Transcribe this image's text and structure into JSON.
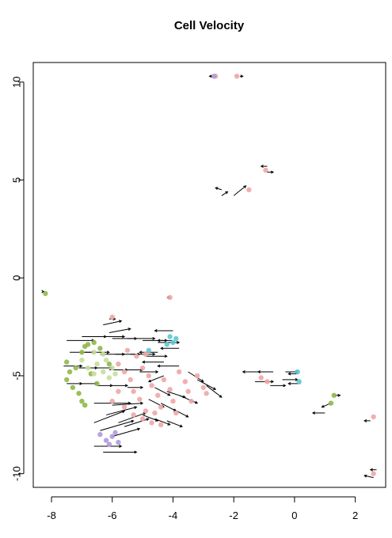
{
  "chart_data": {
    "type": "scatter",
    "title": "Cell Velocity",
    "xlabel": "",
    "ylabel": "",
    "xlim": [
      -8.6,
      3.0
    ],
    "ylim": [
      -10.7,
      11.0
    ],
    "x_ticks": [
      -8,
      -6,
      -4,
      -2,
      0,
      2
    ],
    "x_tick_labels": [
      "-8",
      "-6",
      "-4",
      "-2",
      "0",
      "2"
    ],
    "y_ticks": [
      -10,
      -5,
      0,
      5,
      10
    ],
    "y_tick_labels": [
      "-10",
      "-5",
      "0",
      "5",
      "10"
    ],
    "grid": false,
    "legend": "none",
    "series": [
      {
        "color": "#8fb84a",
        "points": [
          [
            -8.2,
            -0.8
          ],
          [
            -7.5,
            -4.3
          ],
          [
            -7.4,
            -4.8
          ],
          [
            -7.5,
            -5.2
          ],
          [
            -7.3,
            -5.6
          ],
          [
            -7.2,
            -4.6
          ],
          [
            -7.0,
            -3.8
          ],
          [
            -6.9,
            -3.5
          ],
          [
            -6.8,
            -3.4
          ],
          [
            -6.6,
            -3.3
          ],
          [
            -6.4,
            -3.6
          ],
          [
            -7.1,
            -5.9
          ],
          [
            -7.0,
            -6.3
          ],
          [
            -6.9,
            -6.5
          ],
          [
            -6.5,
            -5.4
          ],
          [
            -6.7,
            -4.9
          ],
          [
            -6.1,
            -4.4
          ],
          [
            1.2,
            -6.4
          ],
          [
            1.3,
            -6.0
          ]
        ]
      },
      {
        "color": "#c4df9a",
        "points": [
          [
            -7.0,
            -4.2
          ],
          [
            -6.8,
            -4.6
          ],
          [
            -6.6,
            -4.9
          ],
          [
            -6.5,
            -4.4
          ],
          [
            -6.3,
            -4.8
          ],
          [
            -6.1,
            -5.1
          ],
          [
            -6.0,
            -4.6
          ],
          [
            -6.3,
            -3.9
          ],
          [
            -6.6,
            -3.8
          ],
          [
            -6.2,
            -4.2
          ],
          [
            -5.9,
            -4.9
          ]
        ]
      },
      {
        "color": "#f0a6a6",
        "points": [
          [
            -2.6,
            10.3
          ],
          [
            -1.9,
            10.3
          ],
          [
            -0.95,
            5.5
          ],
          [
            -1.5,
            4.5
          ],
          [
            -4.1,
            -1.0
          ],
          [
            -6.0,
            -2.0
          ],
          [
            -5.8,
            -4.4
          ],
          [
            -5.6,
            -4.8
          ],
          [
            -5.4,
            -5.2
          ],
          [
            -5.3,
            -5.8
          ],
          [
            -5.1,
            -6.2
          ],
          [
            -5.0,
            -4.6
          ],
          [
            -4.8,
            -5.0
          ],
          [
            -4.7,
            -5.5
          ],
          [
            -4.5,
            -6.0
          ],
          [
            -4.4,
            -6.6
          ],
          [
            -4.3,
            -5.2
          ],
          [
            -4.1,
            -5.7
          ],
          [
            -4.0,
            -6.3
          ],
          [
            -3.9,
            -6.9
          ],
          [
            -3.8,
            -4.8
          ],
          [
            -3.6,
            -5.3
          ],
          [
            -3.5,
            -5.8
          ],
          [
            -3.4,
            -6.3
          ],
          [
            -3.2,
            -5.0
          ],
          [
            -3.0,
            -5.6
          ],
          [
            -2.9,
            -5.9
          ],
          [
            -5.6,
            -6.6
          ],
          [
            -5.3,
            -7.0
          ],
          [
            -5.0,
            -7.2
          ],
          [
            -4.7,
            -7.4
          ],
          [
            -4.4,
            -7.5
          ],
          [
            -4.9,
            -6.8
          ],
          [
            -4.6,
            -6.9
          ],
          [
            -5.8,
            -5.8
          ],
          [
            -6.0,
            -6.3
          ],
          [
            -5.5,
            -3.7
          ],
          [
            -5.2,
            -4.0
          ],
          [
            -4.9,
            -3.9
          ],
          [
            -1.1,
            -5.1
          ],
          [
            -0.9,
            -5.3
          ],
          [
            2.6,
            -7.1
          ],
          [
            2.6,
            -10.0
          ]
        ]
      },
      {
        "color": "#5ec8d6",
        "points": [
          [
            -4.1,
            -3.0
          ],
          [
            -4.0,
            -3.3
          ],
          [
            -3.9,
            -3.1
          ],
          [
            -4.2,
            -3.4
          ],
          [
            -4.8,
            -3.7
          ],
          [
            0.1,
            -4.8
          ],
          [
            0.15,
            -5.3
          ]
        ]
      },
      {
        "color": "#b09ad8",
        "points": [
          [
            -6.4,
            -8.0
          ],
          [
            -6.2,
            -8.3
          ],
          [
            -6.0,
            -8.1
          ],
          [
            -5.8,
            -8.4
          ],
          [
            -6.1,
            -8.5
          ],
          [
            -5.9,
            -7.9
          ],
          [
            -2.65,
            10.3
          ]
        ]
      }
    ],
    "arrows": [
      [
        -7.5,
        -3.2,
        0.9,
        0
      ],
      [
        -7.0,
        -3.0,
        0.8,
        0
      ],
      [
        -6.5,
        -3.0,
        0.9,
        0
      ],
      [
        -6.0,
        -3.1,
        0.8,
        0
      ],
      [
        -5.5,
        -3.1,
        0.9,
        0
      ],
      [
        -5.0,
        -3.2,
        0.8,
        0
      ],
      [
        -4.5,
        -3.3,
        0.7,
        0
      ],
      [
        -7.4,
        -3.8,
        0.8,
        0
      ],
      [
        -6.9,
        -3.8,
        0.8,
        0
      ],
      [
        -6.4,
        -3.9,
        0.8,
        0
      ],
      [
        -5.9,
        -3.9,
        0.8,
        0
      ],
      [
        -5.4,
        -3.9,
        0.8,
        0
      ],
      [
        -4.9,
        -4.0,
        0.7,
        0
      ],
      [
        -7.6,
        -4.5,
        0.6,
        0
      ],
      [
        -7.1,
        -4.6,
        0.6,
        0
      ],
      [
        -6.6,
        -4.6,
        0.6,
        0
      ],
      [
        -6.1,
        -4.7,
        0.6,
        0
      ],
      [
        -5.6,
        -4.7,
        0.6,
        0
      ],
      [
        -5.1,
        -4.8,
        0.6,
        0
      ],
      [
        -7.5,
        -5.4,
        0.5,
        0
      ],
      [
        -7.0,
        -5.4,
        0.5,
        0
      ],
      [
        -6.5,
        -5.5,
        0.5,
        0
      ],
      [
        -6.0,
        -5.5,
        0.5,
        0
      ],
      [
        -5.5,
        -5.6,
        0.5,
        0
      ],
      [
        -6.6,
        -6.4,
        1.2,
        0
      ],
      [
        -6.0,
        -6.5,
        1.0,
        0.1
      ],
      [
        -6.2,
        -7.0,
        1.0,
        0.4
      ],
      [
        -6.6,
        -7.4,
        1.0,
        0.6
      ],
      [
        -6.4,
        -7.8,
        1.1,
        0.5
      ],
      [
        -6.0,
        -8.1,
        0.9,
        0.4
      ],
      [
        -6.3,
        -8.9,
        1.1,
        0
      ],
      [
        -6.6,
        -8.6,
        0.9,
        0
      ],
      [
        -5.8,
        -7.4,
        0.9,
        0.5
      ],
      [
        -5.6,
        -7.6,
        0.8,
        0.4
      ],
      [
        -4.0,
        -2.7,
        -0.6,
        0
      ],
      [
        -4.0,
        -3.2,
        -0.5,
        0
      ],
      [
        -3.8,
        -3.6,
        -0.6,
        0
      ],
      [
        -4.5,
        -3.8,
        -0.6,
        0
      ],
      [
        -4.3,
        -4.3,
        -0.7,
        0
      ],
      [
        -3.8,
        -4.5,
        -0.7,
        0
      ],
      [
        -3.5,
        -4.8,
        0.5,
        -0.5
      ],
      [
        -3.2,
        -5.2,
        0.6,
        -0.5
      ],
      [
        -2.9,
        -5.5,
        0.5,
        -0.6
      ],
      [
        -4.3,
        -5.0,
        -0.5,
        -0.3
      ],
      [
        -4.6,
        -5.6,
        0.5,
        -0.4
      ],
      [
        -4.2,
        -5.8,
        0.6,
        -0.3
      ],
      [
        -3.8,
        -6.0,
        0.6,
        -0.4
      ],
      [
        -4.8,
        -6.2,
        0.5,
        -0.4
      ],
      [
        -4.4,
        -6.4,
        0.5,
        -0.4
      ],
      [
        -4.0,
        -6.7,
        0.5,
        -0.4
      ],
      [
        -5.0,
        -7.0,
        0.5,
        -0.3
      ],
      [
        -4.6,
        -7.2,
        0.5,
        -0.3
      ],
      [
        -4.2,
        -7.3,
        0.5,
        -0.3
      ],
      [
        -2.4,
        4.5,
        -0.2,
        0.1
      ],
      [
        -2.4,
        4.2,
        0.2,
        0.2
      ],
      [
        -2.0,
        4.2,
        0.4,
        0.5
      ],
      [
        -0.9,
        5.7,
        -0.2,
        0
      ],
      [
        -0.9,
        5.4,
        0.2,
        0
      ],
      [
        -1.1,
        -4.8,
        -0.6,
        0
      ],
      [
        -0.7,
        -4.8,
        -0.5,
        0
      ],
      [
        -0.3,
        -4.8,
        0.4,
        0
      ],
      [
        -1.3,
        -5.3,
        0.6,
        0
      ],
      [
        -0.8,
        -5.5,
        0.5,
        0
      ],
      [
        -0.4,
        -5.2,
        0.5,
        0
      ],
      [
        0.1,
        -4.9,
        -0.3,
        0
      ],
      [
        0.2,
        -5.4,
        -0.4,
        0
      ],
      [
        1.0,
        -6.9,
        -0.4,
        0
      ],
      [
        1.3,
        -6.0,
        0.2,
        0
      ],
      [
        1.2,
        -6.4,
        -0.3,
        -0.2
      ],
      [
        2.5,
        -7.3,
        -0.2,
        0
      ],
      [
        2.6,
        -10.2,
        -0.3,
        0.1
      ],
      [
        2.7,
        -9.8,
        -0.2,
        0
      ],
      [
        -6.1,
        -2.1,
        0.2,
        0
      ],
      [
        -6.3,
        -2.4,
        0.6,
        0.2
      ],
      [
        -6.1,
        -2.8,
        0.7,
        0.2
      ],
      [
        -2.7,
        10.3,
        -0.1,
        0
      ],
      [
        -1.8,
        10.3,
        0.1,
        0
      ],
      [
        -4.2,
        -1.0,
        0.1,
        0
      ],
      [
        -8.3,
        -0.7,
        0.05,
        0
      ]
    ]
  }
}
